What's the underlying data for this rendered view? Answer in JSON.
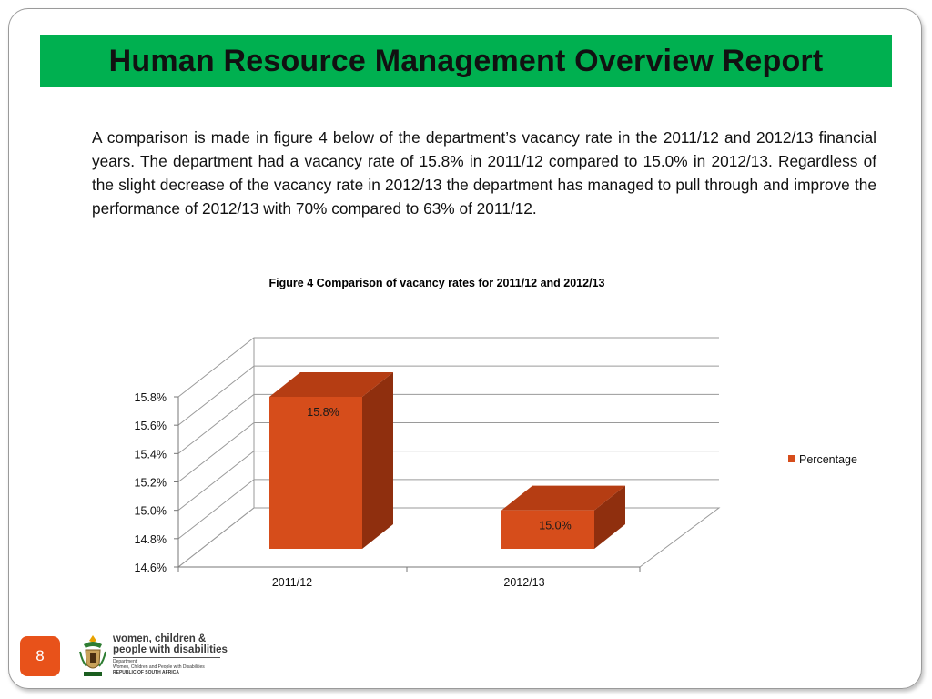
{
  "slide": {
    "title": "Human Resource Management Overview Report",
    "paragraph": "A comparison is made in figure 4 below of the department’s vacancy rate in the 2011/12 and 2012/13 financial years. The department had a vacancy rate of 15.8% in 2011/12 compared to 15.0% in 2012/13. Regardless of the slight decrease of the vacancy rate in 2012/13 the department has managed to pull through and improve the performance of 2012/13 with 70% compared to 63% of 2011/12.",
    "figure_title": "Figure 4 Comparison of vacancy rates for 2011/12 and 2012/13",
    "page_number": "8",
    "title_bar_color": "#00b050",
    "page_badge_color": "#e8521a"
  },
  "logo": {
    "title_line1": "women, children &",
    "title_line2": "people with disabilities",
    "sub_line1": "Department:",
    "sub_line2": "Women, Children and People with Disabilities",
    "sub_line3": "REPUBLIC OF SOUTH AFRICA"
  },
  "chart_data": {
    "type": "bar",
    "style": "3d-column",
    "title": "Figure 4 Comparison of vacancy rates for 2011/12 and 2012/13",
    "categories": [
      "2011/12",
      "2012/13"
    ],
    "series": [
      {
        "name": "Percentage",
        "values": [
          15.8,
          15.0
        ],
        "data_labels": [
          "15.8%",
          "15.0%"
        ],
        "color": "#d64d1b"
      }
    ],
    "ylim": [
      14.6,
      15.8
    ],
    "yticks": [
      "14.6%",
      "14.8%",
      "15.0%",
      "15.2%",
      "15.4%",
      "15.6%",
      "15.8%"
    ],
    "ytick_values": [
      14.6,
      14.8,
      15.0,
      15.2,
      15.4,
      15.6,
      15.8
    ],
    "grid": true,
    "legend": "right"
  }
}
